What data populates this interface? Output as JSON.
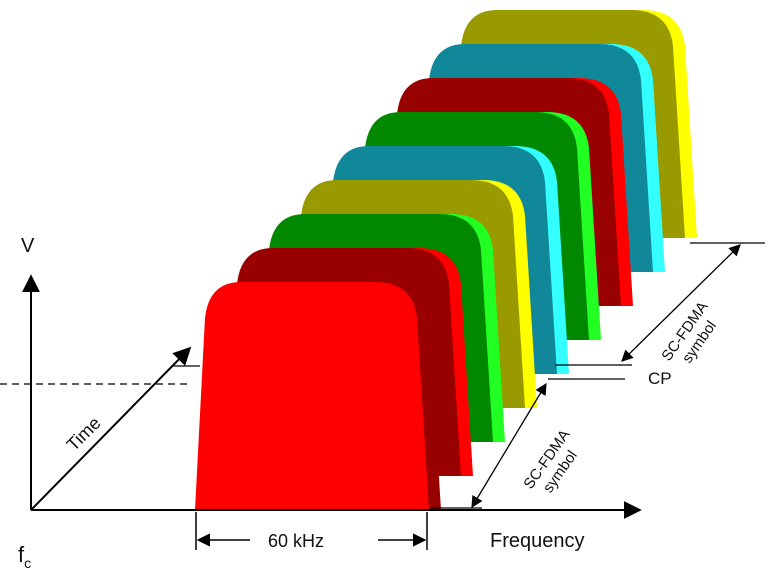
{
  "labels": {
    "v_axis": "V",
    "time_axis": "Time",
    "frequency_axis": "Frequency",
    "fc_main": "f",
    "fc_sub": "c",
    "bandwidth": "60 kHz",
    "cp": "CP",
    "symbol_front_line1": "SC-FDMA",
    "symbol_front_line2": "symbol",
    "symbol_back_line1": "SC-FDMA",
    "symbol_back_line2": "symbol"
  },
  "colors": {
    "red": "#ff0000",
    "dark_red": "#990000",
    "green": "#008800",
    "light_green": "#22ff22",
    "olive": "#999900",
    "yellow": "#ffff00",
    "teal": "#118899",
    "cyan": "#33ffff",
    "axis": "#000000"
  },
  "layers": [
    {
      "front": "#999900",
      "stripe": "#ffff00",
      "name": "olive-back"
    },
    {
      "front": "#118899",
      "stripe": "#33ffff",
      "name": "teal-back"
    },
    {
      "front": "#990000",
      "stripe": "#ff0000",
      "name": "red-back"
    },
    {
      "front": "#008800",
      "stripe": "#22ff22",
      "name": "green-back"
    },
    {
      "front": "#118899",
      "stripe": "#33ffff",
      "name": "teal-front"
    },
    {
      "front": "#999900",
      "stripe": "#ffff00",
      "name": "olive-front"
    },
    {
      "front": "#008800",
      "stripe": "#22ff22",
      "name": "green-front"
    },
    {
      "front": "#990000",
      "stripe": "#ff0000",
      "name": "red-mid"
    },
    {
      "front": "#ff0000",
      "stripe": "#990000",
      "name": "red-front"
    }
  ]
}
